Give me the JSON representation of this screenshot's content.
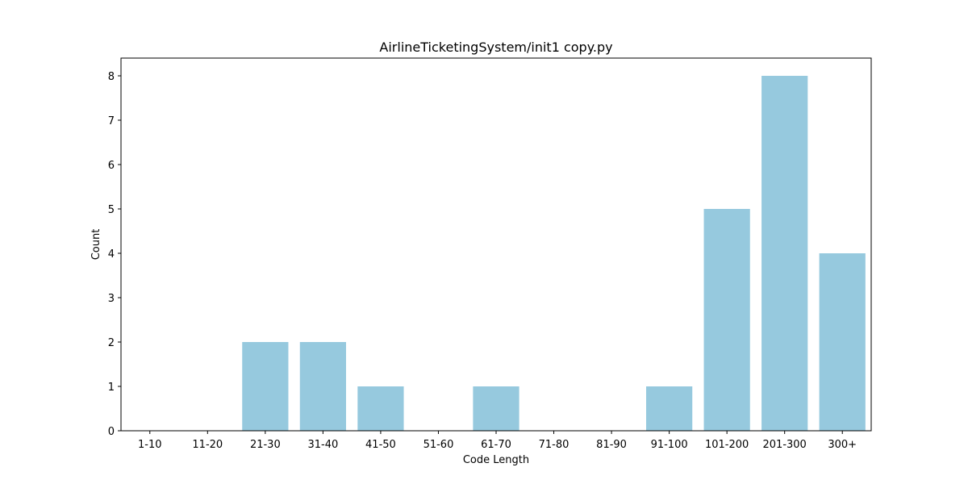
{
  "chart_data": {
    "type": "bar",
    "title": "AirlineTicketingSystem/init1 copy.py",
    "xlabel": "Code Length",
    "ylabel": "Count",
    "categories": [
      "1-10",
      "11-20",
      "21-30",
      "31-40",
      "41-50",
      "51-60",
      "61-70",
      "71-80",
      "81-90",
      "91-100",
      "101-200",
      "201-300",
      "300+"
    ],
    "values": [
      0,
      0,
      2,
      2,
      1,
      0,
      1,
      0,
      0,
      1,
      5,
      8,
      4
    ],
    "ylim": [
      0,
      8.4
    ],
    "yticks": [
      0,
      1,
      2,
      3,
      4,
      5,
      6,
      7,
      8
    ],
    "grid": false,
    "bar_color": "#96c9de"
  }
}
